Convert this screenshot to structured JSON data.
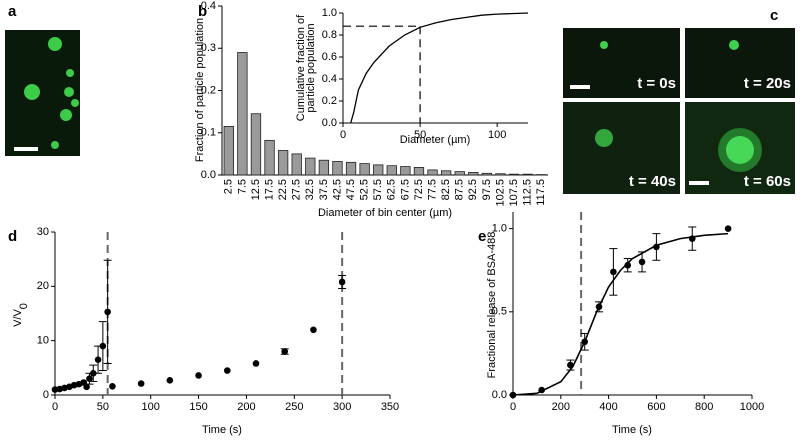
{
  "panel_labels": [
    "a",
    "b",
    "c",
    "d",
    "e"
  ],
  "time_labels": [
    "t = 0s",
    "t = 20s",
    "t = 40s",
    "t = 60s"
  ],
  "chart_data": [
    {
      "type": "bar",
      "ylabel": "Fraction of particle population",
      "xlabel": "Diameter of bin center (µm)",
      "categories": [
        "2.5",
        "7.5",
        "12.5",
        "17.5",
        "22.5",
        "27.5",
        "32.5",
        "37.5",
        "42.5",
        "47.5",
        "52.5",
        "57.5",
        "62.5",
        "67.5",
        "72.5",
        "77.5",
        "82.5",
        "87.5",
        "92.5",
        "97.5",
        "102.5",
        "107.5",
        "112.5",
        "117.5"
      ],
      "values": [
        0.115,
        0.29,
        0.145,
        0.082,
        0.058,
        0.05,
        0.04,
        0.035,
        0.032,
        0.03,
        0.027,
        0.024,
        0.022,
        0.02,
        0.018,
        0.012,
        0.01,
        0.008,
        0.006,
        0.004,
        0.003,
        0.002,
        0.002,
        0.001
      ],
      "color": "#9a9a9a",
      "ylim": [
        0,
        0.4
      ],
      "yticks": [
        {
          "value": 0,
          "label": "0.0"
        },
        0.1,
        0.2,
        0.3,
        0.4
      ]
    },
    {
      "type": "line",
      "ylabel": [
        "Cumulative fraction of",
        "particle population"
      ],
      "xlabel": "Diameter (µm)",
      "x": [
        5,
        7,
        10,
        15,
        20,
        30,
        40,
        50,
        60,
        70,
        80,
        90,
        100,
        120
      ],
      "values": [
        0,
        0.1,
        0.3,
        0.45,
        0.55,
        0.7,
        0.8,
        0.87,
        0.91,
        0.94,
        0.96,
        0.98,
        0.99,
        1.0
      ],
      "color": "#000000",
      "xlim": [
        0,
        120
      ],
      "xticks": [
        0,
        50,
        100
      ],
      "ylim": [
        0,
        1
      ],
      "yticks": [
        {
          "value": 0,
          "label": "0.0"
        },
        0.2,
        0.4,
        0.6,
        0.8,
        {
          "value": 1,
          "label": "1.0"
        }
      ],
      "ref_x": 50,
      "ref_y": 0.88
    },
    {
      "type": "scatter",
      "ylabel": "V/V",
      "ylabel_sub": "0",
      "xlabel": "Time (s)",
      "series": [
        {
          "x": [
            0,
            5,
            10,
            15,
            20,
            25,
            30,
            33,
            36,
            40,
            45,
            50,
            55
          ],
          "values": [
            1,
            1.1,
            1.3,
            1.5,
            1.8,
            2.0,
            2.3,
            1.5,
            3,
            4,
            6.5,
            9,
            15.3
          ],
          "errors": [
            null,
            null,
            null,
            null,
            null,
            null,
            null,
            null,
            1,
            1.5,
            2.5,
            4.5,
            9.5
          ],
          "color": "#000000"
        },
        {
          "x": [
            60,
            90,
            120,
            150,
            180,
            210,
            240,
            270,
            300
          ],
          "values": [
            1.6,
            2.1,
            2.7,
            3.6,
            4.5,
            5.8,
            8,
            12,
            20.8
          ],
          "errors": [
            null,
            null,
            null,
            null,
            null,
            null,
            0.5,
            null,
            1.2
          ],
          "color": "#000000"
        }
      ],
      "xlim": [
        0,
        350
      ],
      "xticks": [
        0,
        50,
        100,
        150,
        200,
        250,
        300,
        350
      ],
      "ylim": [
        0,
        30
      ],
      "yticks": [
        0,
        10,
        20,
        30
      ],
      "ref_lines_x": [
        55,
        300
      ]
    },
    {
      "type": "scatter",
      "ylabel": "Fractional release of BSA-488",
      "xlabel": "Time (s)",
      "series": [
        {
          "x": [
            0,
            120,
            240,
            300,
            360,
            420,
            480,
            540,
            600,
            750,
            900
          ],
          "values": [
            0,
            0.03,
            0.18,
            0.32,
            0.53,
            0.74,
            0.78,
            0.8,
            0.89,
            0.94,
            1.0
          ],
          "errors": [
            null,
            null,
            0.03,
            0.05,
            0.03,
            0.14,
            0.04,
            0.06,
            0.08,
            0.07,
            null
          ],
          "color": "#000000"
        },
        {
          "fit": true,
          "x": [
            0,
            100,
            200,
            250,
            300,
            350,
            400,
            450,
            500,
            600,
            700,
            800,
            900
          ],
          "values": [
            0,
            0.01,
            0.08,
            0.17,
            0.32,
            0.5,
            0.65,
            0.75,
            0.82,
            0.9,
            0.94,
            0.96,
            0.97
          ],
          "color": "#000000"
        }
      ],
      "xlim": [
        0,
        1000
      ],
      "xticks": [
        0,
        200,
        400,
        600,
        800,
        1000
      ],
      "ylim": [
        0,
        1.1
      ],
      "yticks": [
        {
          "value": 0,
          "label": "0.0"
        },
        0.5,
        {
          "value": 1,
          "label": "1.0"
        }
      ],
      "ref_lines_x": [
        285
      ]
    }
  ]
}
